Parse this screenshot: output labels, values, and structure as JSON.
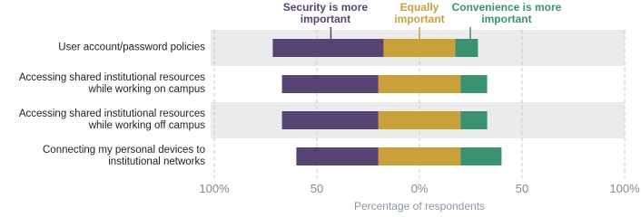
{
  "chart_data": {
    "type": "diverging-stacked-bar",
    "x_label": "Percentage of respondents",
    "categories": [
      "User account/password policies",
      "Accessing shared institutional resources while working on campus",
      "Accessing shared institutional resources while working off campus",
      "Connecting my personal devices to institutional networks"
    ],
    "series": [
      {
        "name": "Security is more important",
        "color": "#574472",
        "values": [
          54,
          47,
          47,
          40
        ]
      },
      {
        "name": "Equally important",
        "color": "#c9a03a",
        "values": [
          35,
          40,
          40,
          40
        ]
      },
      {
        "name": "Convenience is more important",
        "color": "#3a9270",
        "values": [
          11,
          13,
          13,
          20
        ]
      }
    ],
    "xlim": [
      -100,
      100
    ],
    "xticks": [
      {
        "value": -100,
        "label": "100%"
      },
      {
        "value": -50,
        "label": "50"
      },
      {
        "value": 0,
        "label": "0%"
      },
      {
        "value": 50,
        "label": "50"
      },
      {
        "value": 100,
        "label": "100%"
      }
    ],
    "grid": true
  }
}
